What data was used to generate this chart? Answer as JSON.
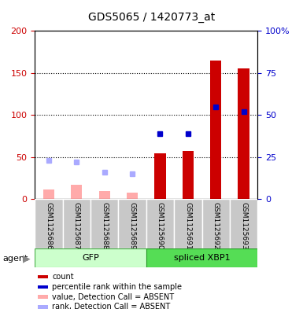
{
  "title": "GDS5065 / 1420773_at",
  "samples": [
    "GSM1125686",
    "GSM1125687",
    "GSM1125688",
    "GSM1125689",
    "GSM1125690",
    "GSM1125691",
    "GSM1125692",
    "GSM1125693"
  ],
  "count_values": [
    null,
    null,
    null,
    null,
    55,
    57,
    165,
    155
  ],
  "rank_values_pct": [
    null,
    null,
    null,
    null,
    39,
    39,
    55,
    52
  ],
  "absent_count_values": [
    12,
    17,
    10,
    8,
    null,
    null,
    null,
    null
  ],
  "absent_rank_values_pct": [
    23,
    22,
    16,
    15,
    null,
    null,
    null,
    null
  ],
  "left_ylim": [
    0,
    200
  ],
  "right_ylim": [
    0,
    100
  ],
  "left_yticks": [
    0,
    50,
    100,
    150,
    200
  ],
  "right_yticks": [
    0,
    25,
    50,
    75,
    100
  ],
  "right_yticklabels": [
    "0",
    "25",
    "50",
    "75",
    "100%"
  ],
  "color_count": "#cc0000",
  "color_rank": "#0000cc",
  "color_absent_count": "#ffaaaa",
  "color_absent_rank": "#aaaaff",
  "gfp_color_light": "#ccffcc",
  "gfp_color_dark": "#66dd66",
  "xbp1_color": "#55dd55",
  "sample_bg_color": "#c8c8c8",
  "legend_labels": [
    "count",
    "percentile rank within the sample",
    "value, Detection Call = ABSENT",
    "rank, Detection Call = ABSENT"
  ],
  "legend_colors": [
    "#cc0000",
    "#0000cc",
    "#ffaaaa",
    "#aaaaff"
  ]
}
